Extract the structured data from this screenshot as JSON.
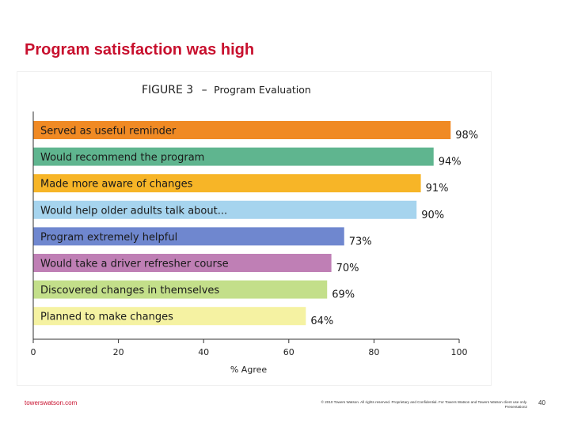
{
  "slide": {
    "title": "Program satisfaction was high",
    "footer_site": "towerswatson.com",
    "footer_copyright": "© 2010 Towers Watson. All rights reserved. Proprietary and Confidential. For Towers Watson and Towers Watson client use only.",
    "footer_presentation": "Presentation2",
    "page_number": "40"
  },
  "chart_data": {
    "type": "bar",
    "orientation": "horizontal",
    "figure_label": "FIGURE 3",
    "figure_dash": "–",
    "title": "Program Evaluation",
    "xlabel": "% Agree",
    "ylabel": "",
    "xlim": [
      0,
      100
    ],
    "xticks": [
      0,
      20,
      40,
      60,
      80,
      100
    ],
    "grid": false,
    "categories": [
      "Served as useful reminder",
      "Would recommend the program",
      "Made more aware of changes",
      "Would help older adults talk about...",
      "Program extremely helpful",
      "Would take a driver refresher course",
      "Discovered changes in themselves",
      "Planned to make changes"
    ],
    "values": [
      98,
      94,
      91,
      90,
      73,
      70,
      69,
      64
    ],
    "value_labels": [
      "98%",
      "94%",
      "91%",
      "90%",
      "73%",
      "70%",
      "69%",
      "64%"
    ],
    "colors": [
      "#f08a24",
      "#5fb58f",
      "#f7b527",
      "#a6d4ee",
      "#6f87cf",
      "#bf7fb5",
      "#c3df8a",
      "#f5f2a2"
    ]
  }
}
